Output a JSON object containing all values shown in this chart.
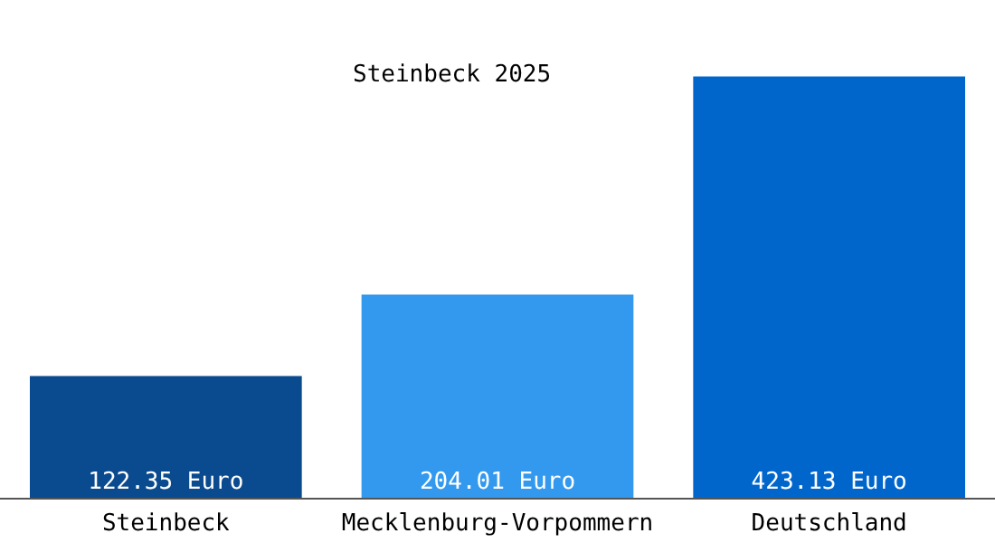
{
  "chart_data": {
    "type": "bar",
    "title": "Steinbeck 2025",
    "categories": [
      "Steinbeck",
      "Mecklenburg-Vorpommern",
      "Deutschland"
    ],
    "values": [
      122.35,
      204.01,
      423.13
    ],
    "colors": [
      "#0a4a8e",
      "#3399ee",
      "#0066cc"
    ],
    "value_labels": [
      "122.35 Euro",
      "204.01 Euro",
      "423.13 Euro"
    ]
  }
}
